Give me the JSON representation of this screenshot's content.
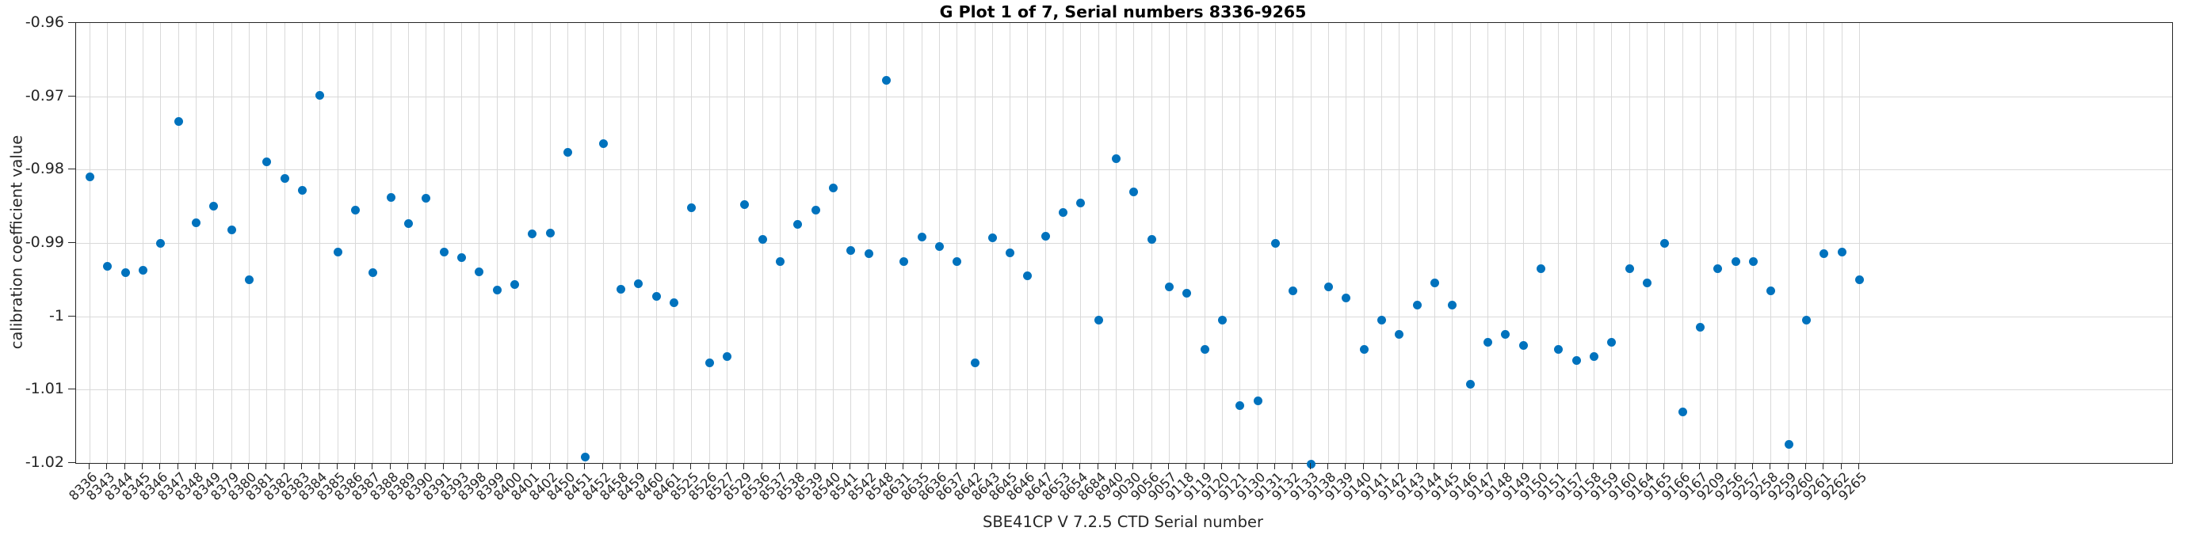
{
  "chart_data": {
    "type": "scatter",
    "title": "G Plot 1 of 7, Serial numbers 8336-9265",
    "xlabel": "SBE41CP V 7.2.5 CTD Serial number",
    "ylabel": "calibration coefficient value",
    "categories": [
      "8336",
      "8343",
      "8344",
      "8345",
      "8346",
      "8347",
      "8348",
      "8349",
      "8379",
      "8380",
      "8381",
      "8382",
      "8383",
      "8384",
      "8385",
      "8386",
      "8387",
      "8388",
      "8389",
      "8390",
      "8391",
      "8393",
      "8398",
      "8399",
      "8400",
      "8401",
      "8402",
      "8450",
      "8451",
      "8452",
      "8458",
      "8459",
      "8460",
      "8461",
      "8525",
      "8526",
      "8527",
      "8529",
      "8536",
      "8537",
      "8538",
      "8539",
      "8540",
      "8541",
      "8542",
      "8548",
      "8631",
      "8635",
      "8636",
      "8637",
      "8642",
      "8643",
      "8645",
      "8646",
      "8647",
      "8653",
      "8654",
      "8684",
      "8940",
      "9030",
      "9056",
      "9057",
      "9118",
      "9119",
      "9120",
      "9121",
      "9130",
      "9131",
      "9132",
      "9133",
      "9138",
      "9139",
      "9140",
      "9141",
      "9142",
      "9143",
      "9144",
      "9145",
      "9146",
      "9147",
      "9148",
      "9149",
      "9150",
      "9151",
      "9157",
      "9158",
      "9159",
      "9160",
      "9164",
      "9165",
      "9166",
      "9167",
      "9209",
      "9256",
      "9257",
      "9258",
      "9259",
      "9260",
      "9261",
      "9262",
      "9265"
    ],
    "values": [
      -0.981,
      -0.9932,
      -0.994,
      -0.9937,
      -0.99,
      -0.9734,
      -0.9872,
      -0.985,
      -0.9882,
      -0.995,
      -0.9789,
      -0.9812,
      -0.9828,
      -0.9699,
      -0.9912,
      -0.9855,
      -0.9941,
      -0.9838,
      -0.9874,
      -0.9839,
      -0.9912,
      -0.992,
      -0.9939,
      -0.9964,
      -0.9957,
      -0.9888,
      -0.9886,
      -0.9776,
      -1.0192,
      -0.9765,
      -0.9963,
      -0.9956,
      -0.9973,
      -0.9982,
      -0.9852,
      -1.0064,
      -1.0055,
      -0.9848,
      -0.9895,
      -0.9925,
      -0.9875,
      -0.9855,
      -0.9825,
      -0.991,
      -0.9915,
      -0.9678,
      -0.9925,
      -0.9892,
      -0.9905,
      -0.9925,
      -1.0063,
      -0.9893,
      -0.9914,
      -0.9945,
      -0.9891,
      -0.9858,
      -0.9845,
      -1.0005,
      -0.9785,
      -0.983,
      -0.9895,
      -0.996,
      -0.9969,
      -1.0045,
      -1.0005,
      -1.0122,
      -1.0115,
      -0.99,
      -0.9965,
      -1.0202,
      -0.996,
      -0.9975,
      -1.0045,
      -1.0005,
      -1.0025,
      -0.9985,
      -0.9955,
      -0.9985,
      -1.0093,
      -1.0035,
      -1.0025,
      -1.004,
      -0.9935,
      -1.0045,
      -1.006,
      -1.0055,
      -1.0035,
      -0.9935,
      -0.9955,
      -0.99,
      -1.013,
      -1.0015,
      -0.9935,
      -0.9925,
      -0.9925,
      -0.9965,
      -1.0175,
      -1.0005,
      -0.9915,
      -0.9912,
      -0.995
    ],
    "yticks": [
      {
        "value": -0.96,
        "label": "-0.96"
      },
      {
        "value": -0.97,
        "label": "-0.97"
      },
      {
        "value": -0.98,
        "label": "-0.98"
      },
      {
        "value": -0.99,
        "label": "-0.99"
      },
      {
        "value": -1.0,
        "label": "-1"
      },
      {
        "value": -1.01,
        "label": "-1.01"
      },
      {
        "value": -1.02,
        "label": "-1.02"
      }
    ],
    "ylim": [
      -1.02,
      -0.96
    ],
    "grid": true,
    "legend_position": "none",
    "marker_color": "#0072bd",
    "grid_color": "#d9d9d9",
    "axis_color": "#262626"
  }
}
